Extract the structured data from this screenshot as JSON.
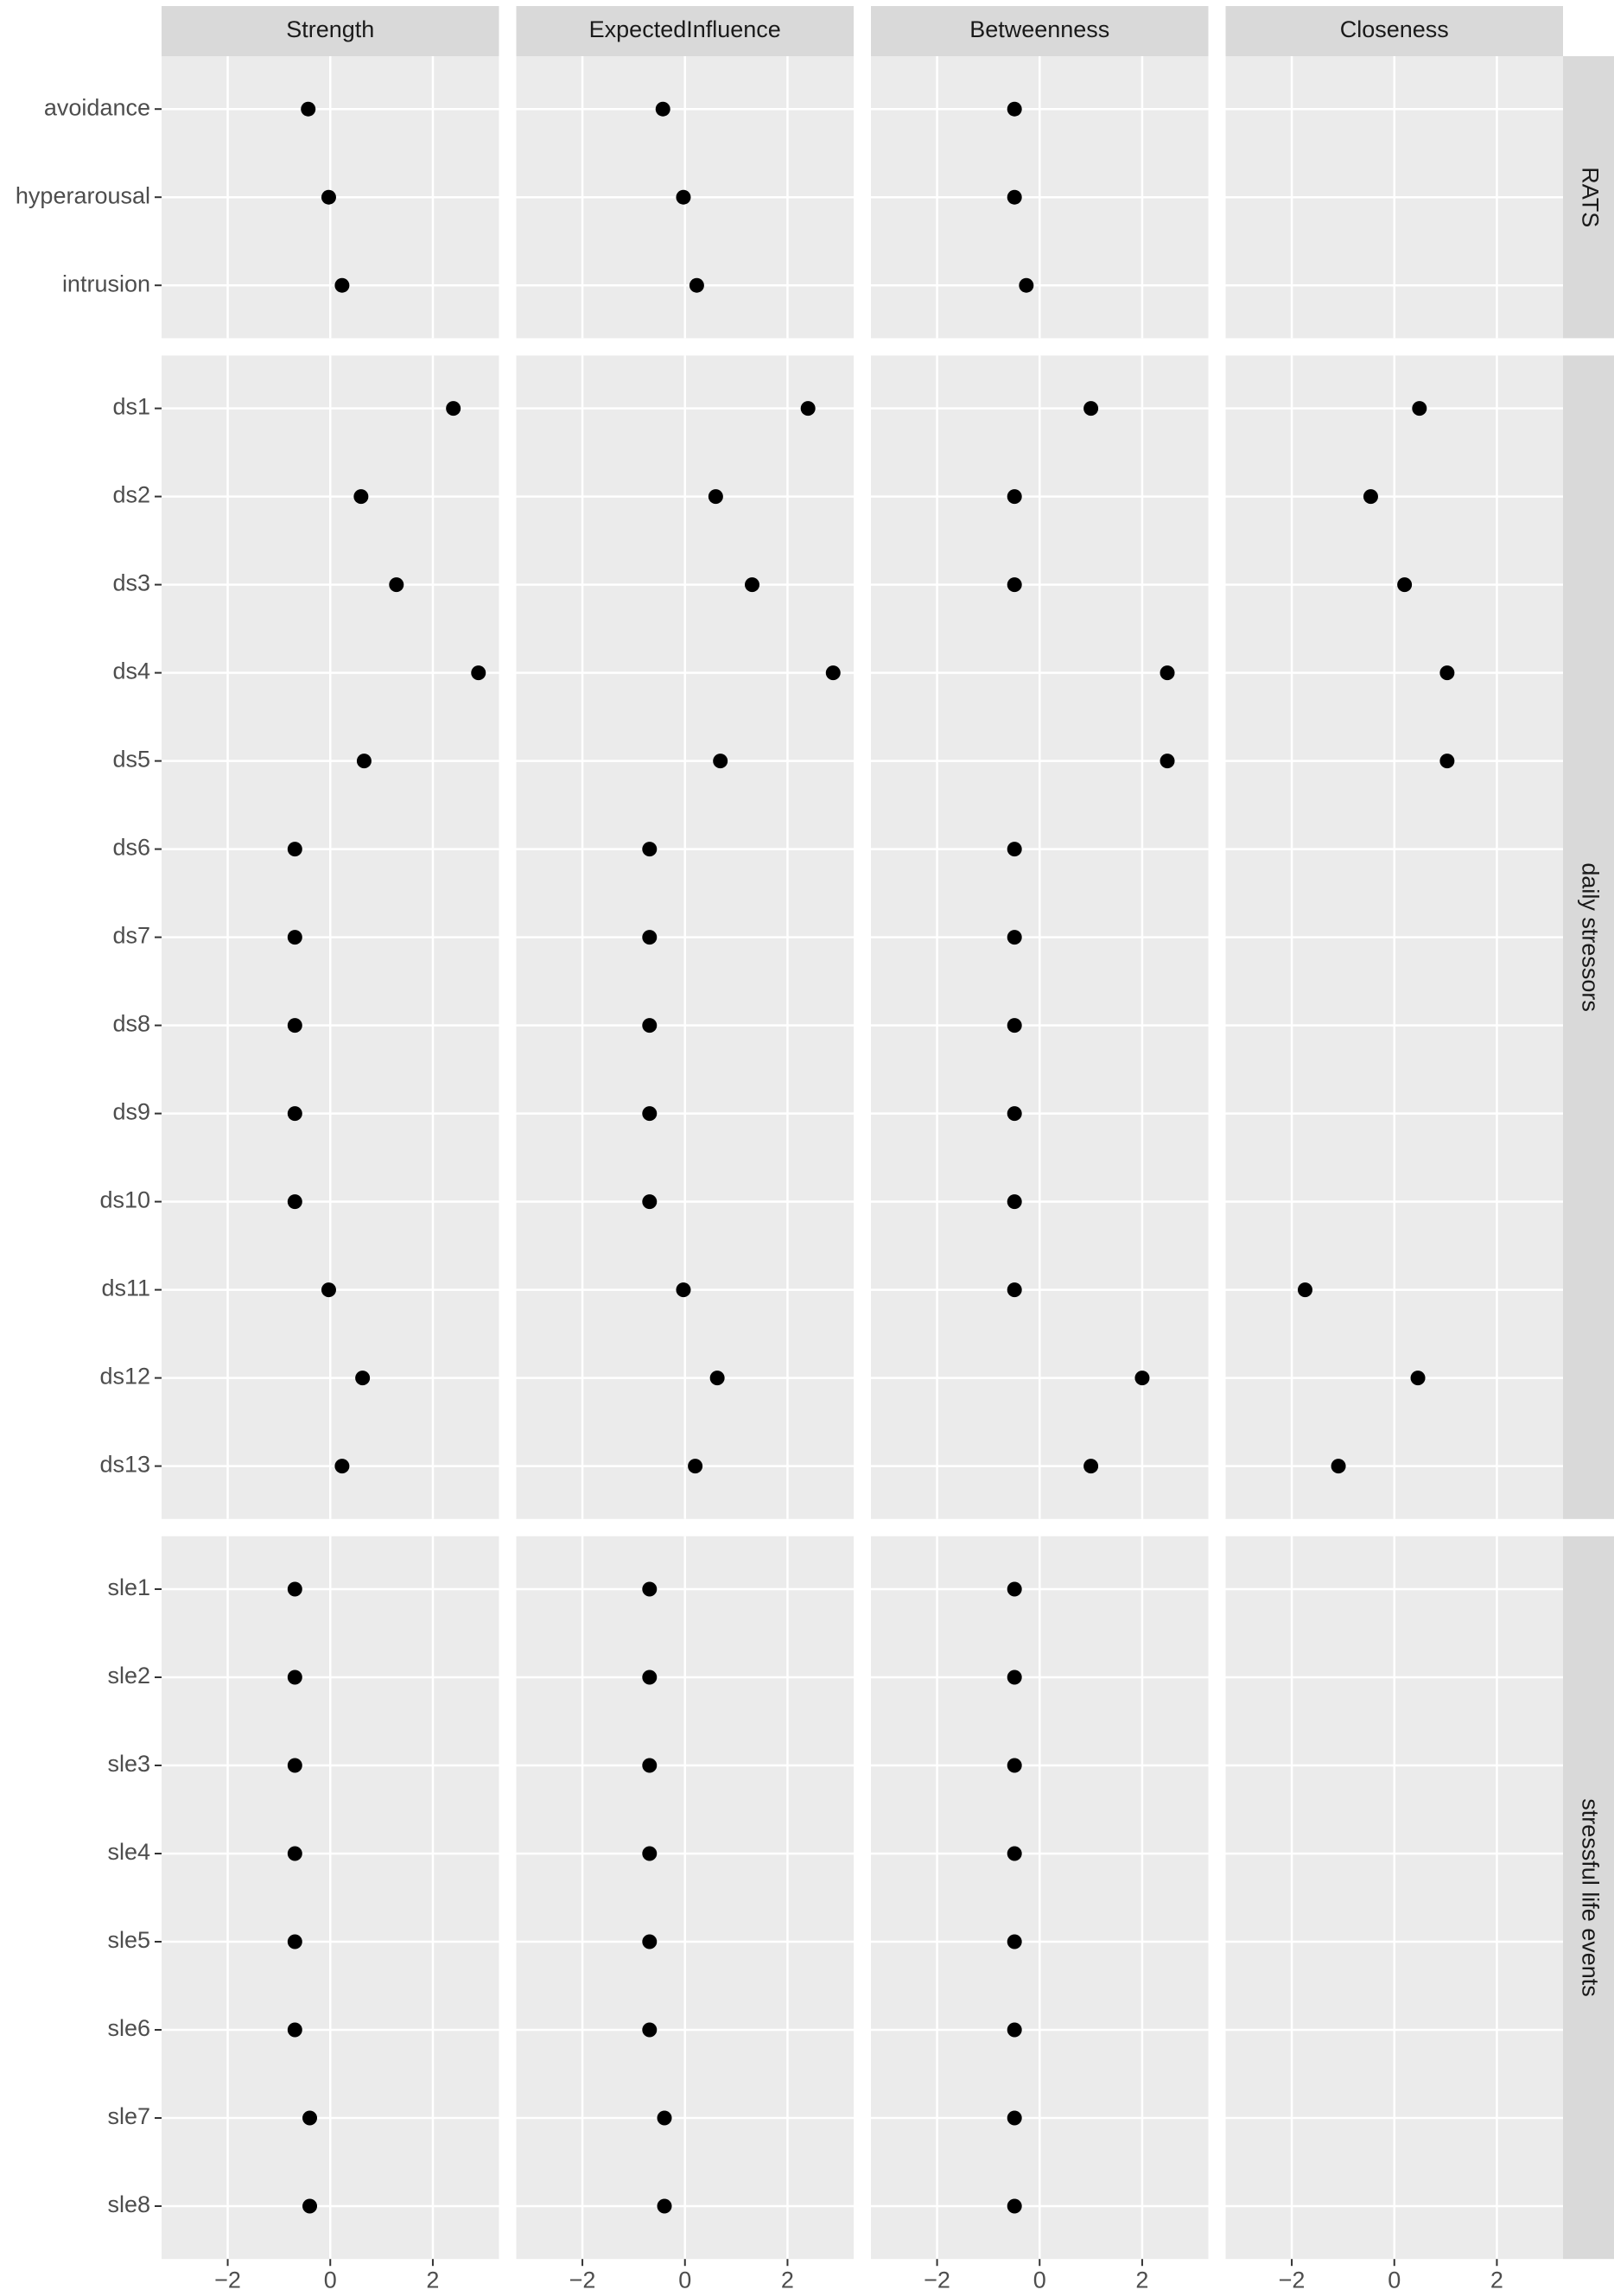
{
  "chart_data": {
    "type": "dot",
    "color": "#000000",
    "grid": true,
    "columns": [
      "Strength",
      "ExpectedInfluence",
      "Betweenness",
      "Closeness"
    ],
    "xlim": [
      -3.29,
      3.29
    ],
    "xticks": [
      {
        "value": -2,
        "label": "−2"
      },
      0,
      2
    ],
    "rows": [
      {
        "label": "RATS",
        "categories": [
          "avoidance",
          "hyperarousal",
          "intrusion"
        ],
        "values": [
          [
            -0.43,
            -0.03,
            0.23
          ],
          [
            -0.43,
            -0.03,
            0.23
          ],
          [
            -0.49,
            -0.49,
            -0.26
          ],
          [
            null,
            null,
            null
          ]
        ]
      },
      {
        "label": "daily stressors",
        "categories": [
          "ds1",
          "ds2",
          "ds3",
          "ds4",
          "ds5",
          "ds6",
          "ds7",
          "ds8",
          "ds9",
          "ds10",
          "ds11",
          "ds12",
          "ds13"
        ],
        "values": [
          [
            2.4,
            0.6,
            1.29,
            2.89,
            0.66,
            -0.69,
            -0.69,
            -0.69,
            -0.69,
            -0.69,
            -0.03,
            0.63,
            0.23
          ],
          [
            2.4,
            0.6,
            1.31,
            2.89,
            0.69,
            -0.69,
            -0.69,
            -0.69,
            -0.69,
            -0.69,
            -0.03,
            0.63,
            0.2
          ],
          [
            1.0,
            -0.49,
            -0.49,
            2.49,
            2.49,
            -0.49,
            -0.49,
            -0.49,
            -0.49,
            -0.49,
            -0.49,
            2.0,
            1.0
          ],
          [
            0.49,
            -0.46,
            0.2,
            1.03,
            1.03,
            null,
            null,
            null,
            null,
            null,
            -1.74,
            0.46,
            -1.09
          ]
        ]
      },
      {
        "label": "stressful life events",
        "categories": [
          "sle1",
          "sle2",
          "sle3",
          "sle4",
          "sle5",
          "sle6",
          "sle7",
          "sle8"
        ],
        "values": [
          [
            -0.69,
            -0.69,
            -0.69,
            -0.69,
            -0.69,
            -0.69,
            -0.4,
            -0.4
          ],
          [
            -0.69,
            -0.69,
            -0.69,
            -0.69,
            -0.69,
            -0.69,
            -0.4,
            -0.4
          ],
          [
            -0.49,
            -0.49,
            -0.49,
            -0.49,
            -0.49,
            -0.49,
            -0.49,
            -0.49
          ],
          [
            null,
            null,
            null,
            null,
            null,
            null,
            null,
            null
          ]
        ]
      }
    ]
  }
}
